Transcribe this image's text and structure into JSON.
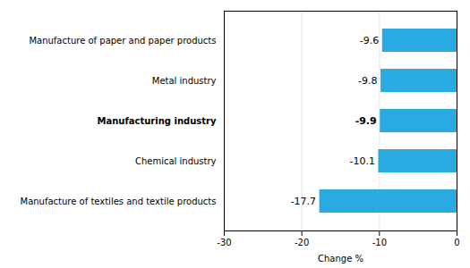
{
  "chart_data": {
    "type": "bar",
    "orientation": "horizontal",
    "categories": [
      "Manufacture of textiles and textile products",
      "Chemical industry",
      "Manufacturing industry",
      "Metal industry",
      "Manufacture of paper and paper products"
    ],
    "values": [
      -17.7,
      -10.1,
      -9.9,
      -9.8,
      -9.6
    ],
    "color": "#29abe2",
    "xlabel": "Change %",
    "xlim": [
      -30,
      0
    ],
    "xticks": [
      -30,
      -20,
      -10,
      0
    ],
    "grid": true,
    "data_labels": true
  }
}
